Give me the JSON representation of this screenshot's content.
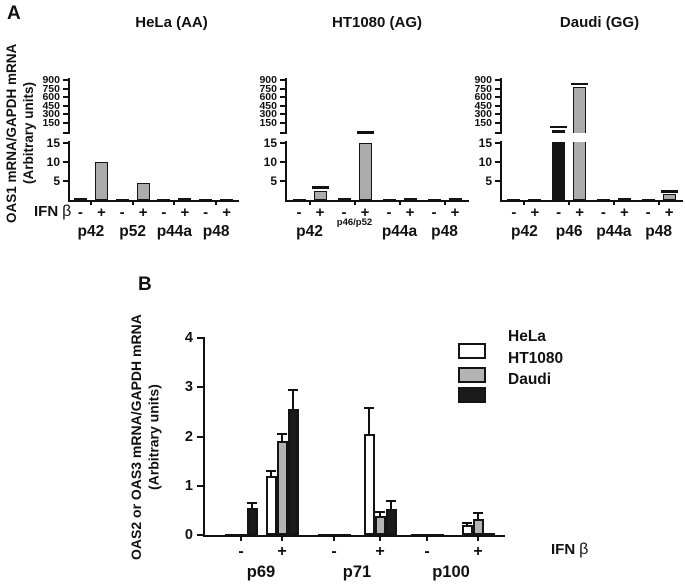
{
  "figure": {
    "panel_a_letter": "A",
    "panel_b_letter": "B",
    "ifn_label": "IFN",
    "beta_symbol": "β",
    "panel_a_ylabel_line1": "OAS1  mRNA/GAPDH mRNA",
    "panel_a_ylabel_line2": "(Arbitrary units)",
    "panel_b_ylabel_line1": "OAS2 or OAS3  mRNA/GAPDH mRNA",
    "panel_b_ylabel_line2": "(Arbitrary units)",
    "colors": {
      "minus_bar": "#141414",
      "plus_bar": "#ababab",
      "outline": "#141414",
      "hela_fill": "#ffffff",
      "ht1080_fill": "#b3b3b3",
      "daudi_fill": "#1a1a1a"
    }
  },
  "chart_data": [
    {
      "panel": "A",
      "type": "bar",
      "title": "HeLa (AA)",
      "ylabel": "OAS1 mRNA/GAPDH mRNA (Arbitrary units)",
      "broken_y_axis": true,
      "lower_range": [
        0,
        15
      ],
      "lower_ticks": [
        15,
        10,
        5
      ],
      "upper_range": [
        150,
        900
      ],
      "upper_ticks": [
        900,
        750,
        600,
        450,
        300,
        150
      ],
      "conditions": [
        "-",
        "+"
      ],
      "condition_axis_label": "IFN β",
      "groups": [
        {
          "label": "p42",
          "small_label": false,
          "minus": 0.4,
          "minus_err": 0,
          "plus": 10,
          "plus_err": 0
        },
        {
          "label": "p52",
          "small_label": false,
          "minus": 0.15,
          "minus_err": 0,
          "plus": 4.5,
          "plus_err": 0
        },
        {
          "label": "p44a",
          "small_label": false,
          "minus": 0.1,
          "minus_err": 0,
          "plus": 0.5,
          "plus_err": 0
        },
        {
          "label": "p48",
          "small_label": false,
          "minus": 0.08,
          "minus_err": 0,
          "plus": 0.15,
          "plus_err": 0
        }
      ]
    },
    {
      "panel": "A",
      "type": "bar",
      "title": "HT1080 (AG)",
      "ylabel": "OAS1 mRNA/GAPDH mRNA (Arbitrary units)",
      "broken_y_axis": true,
      "lower_range": [
        0,
        15
      ],
      "lower_ticks": [
        15,
        10,
        5
      ],
      "upper_range": [
        150,
        900
      ],
      "upper_ticks": [
        900,
        750,
        600,
        450,
        300,
        150
      ],
      "conditions": [
        "-",
        "+"
      ],
      "condition_axis_label": "IFN β",
      "groups": [
        {
          "label": "p42",
          "small_label": false,
          "minus": 0.1,
          "minus_err": 0,
          "plus": 2.5,
          "plus_err": 0.5
        },
        {
          "label": "p46/p52",
          "small_label": true,
          "minus": 0.5,
          "minus_err": 0,
          "plus": 15,
          "plus_err": 60
        },
        {
          "label": "p44a",
          "small_label": false,
          "minus": 0.05,
          "minus_err": 0,
          "plus": 0.5,
          "plus_err": 0
        },
        {
          "label": "p48",
          "small_label": false,
          "minus": 0.05,
          "minus_err": 0,
          "plus": 0.5,
          "plus_err": 0
        }
      ]
    },
    {
      "panel": "A",
      "type": "bar",
      "title": "Daudi (GG)",
      "ylabel": "OAS1 mRNA/GAPDH mRNA (Arbitrary units)",
      "broken_y_axis": true,
      "lower_range": [
        0,
        15
      ],
      "lower_ticks": [
        15,
        10,
        5
      ],
      "upper_range": [
        150,
        900
      ],
      "upper_ticks": [
        900,
        750,
        600,
        450,
        300,
        150
      ],
      "conditions": [
        "-",
        "+"
      ],
      "condition_axis_label": "IFN β",
      "groups": [
        {
          "label": "p42",
          "small_label": false,
          "minus": 0.2,
          "minus_err": 0,
          "plus": 0.3,
          "plus_err": 0
        },
        {
          "label": "p46",
          "small_label": false,
          "minus": 100,
          "minus_err": 12,
          "plus": 780,
          "plus_err": 25
        },
        {
          "label": "p44a",
          "small_label": false,
          "minus": 0.1,
          "minus_err": 0,
          "plus": 0.4,
          "plus_err": 0
        },
        {
          "label": "p48",
          "small_label": false,
          "minus": 0.1,
          "minus_err": 0,
          "plus": 1.5,
          "plus_err": 0.35
        }
      ]
    },
    {
      "panel": "B",
      "type": "grouped-bar",
      "title": "",
      "ylabel": "OAS2 or OAS3 mRNA/GAPDH mRNA (Arbitrary units)",
      "ylim": [
        0,
        4
      ],
      "yticks": [
        4,
        3,
        2,
        1,
        0
      ],
      "grid": false,
      "legend_position": "upper right",
      "categories": [
        "p69",
        "p71",
        "p100"
      ],
      "conditions": [
        "-",
        "+"
      ],
      "condition_axis_label": "IFN β",
      "series": [
        {
          "name": "HeLa",
          "fill": "#ffffff",
          "values": {
            "p69": [
              0.02,
              1.2
            ],
            "p71": [
              0.02,
              2.05
            ],
            "p100": [
              0.02,
              0.2
            ]
          },
          "errors": {
            "p69": [
              0,
              0.08
            ],
            "p71": [
              0,
              0.5
            ],
            "p100": [
              0,
              0.03
            ]
          }
        },
        {
          "name": "HT1080",
          "fill": "#b3b3b3",
          "values": {
            "p69": [
              0.02,
              1.9
            ],
            "p71": [
              0.02,
              0.38
            ],
            "p100": [
              0.03,
              0.33
            ]
          },
          "errors": {
            "p69": [
              0,
              0.13
            ],
            "p71": [
              0,
              0.06
            ],
            "p100": [
              0,
              0.1
            ]
          }
        },
        {
          "name": "Daudi",
          "fill": "#1a1a1a",
          "values": {
            "p69": [
              0.55,
              2.55
            ],
            "p71": [
              0.03,
              0.52
            ],
            "p100": [
              0.02,
              0.04
            ]
          },
          "errors": {
            "p69": [
              0.08,
              0.38
            ],
            "p71": [
              0,
              0.16
            ],
            "p100": [
              0,
              0
            ]
          }
        }
      ]
    }
  ]
}
